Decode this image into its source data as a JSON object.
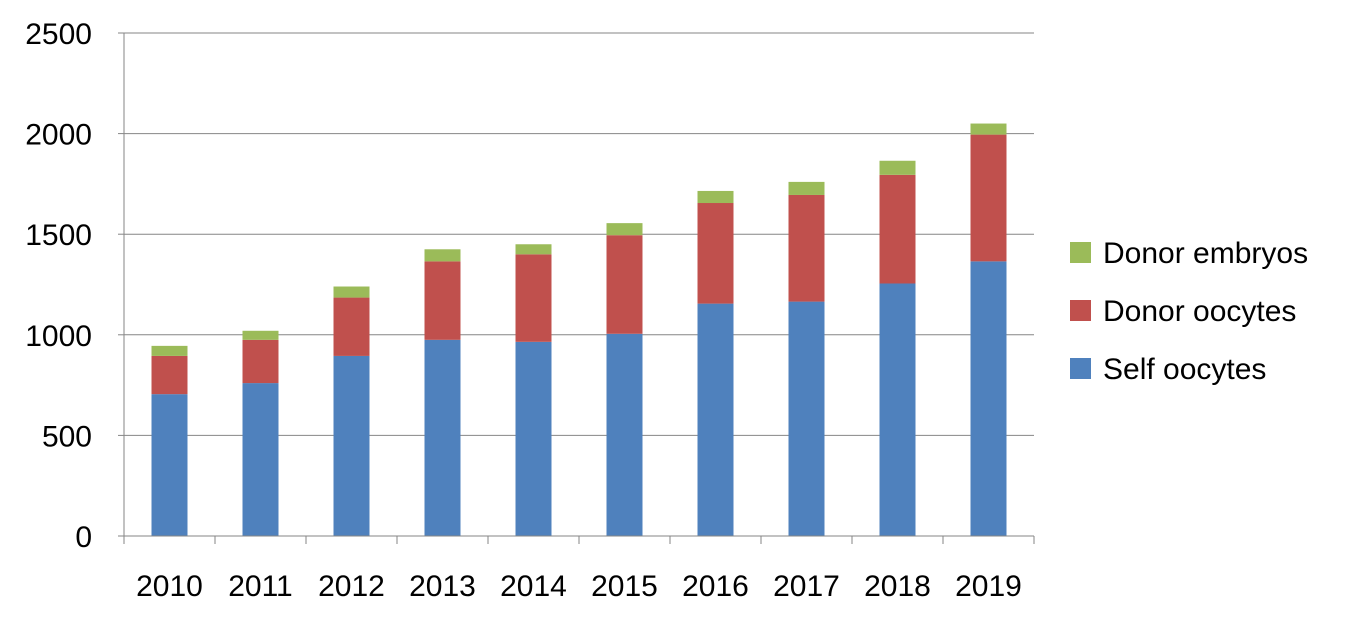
{
  "chart_data": {
    "type": "bar",
    "stacked": true,
    "categories": [
      "2010",
      "2011",
      "2012",
      "2013",
      "2014",
      "2015",
      "2016",
      "2017",
      "2018",
      "2019"
    ],
    "series": [
      {
        "name": "Self oocytes",
        "color": "#4f81bd",
        "values": [
          705,
          760,
          895,
          975,
          965,
          1005,
          1155,
          1165,
          1255,
          1365
        ]
      },
      {
        "name": "Donor oocytes",
        "color": "#c0504d",
        "values": [
          190,
          215,
          290,
          390,
          435,
          490,
          500,
          530,
          540,
          630
        ]
      },
      {
        "name": "Donor embryos",
        "color": "#9bbb59",
        "values": [
          50,
          45,
          55,
          60,
          50,
          60,
          60,
          65,
          70,
          55
        ]
      }
    ],
    "ylim": [
      0,
      2500
    ],
    "yticks": [
      0,
      500,
      1000,
      1500,
      2000,
      2500
    ],
    "grid": true,
    "legend_position": "right",
    "legend_order": [
      "Donor embryos",
      "Donor oocytes",
      "Self oocytes"
    ],
    "title": "",
    "xlabel": "",
    "ylabel": ""
  }
}
